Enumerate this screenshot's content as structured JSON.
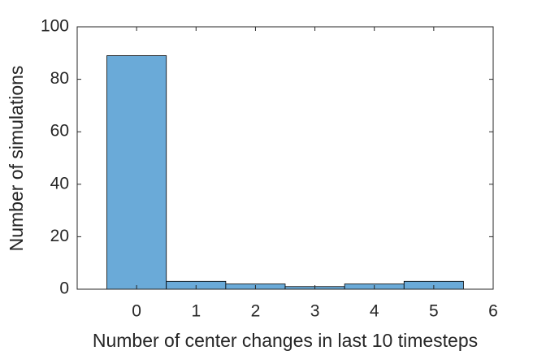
{
  "chart_data": {
    "type": "histogram",
    "xlabel": "Number of center changes in last 10 timesteps",
    "ylabel": "Number of simulations",
    "bins": [
      -0.5,
      0.5,
      1.5,
      2.5,
      3.5,
      4.5,
      5.5
    ],
    "counts": [
      89,
      3,
      2,
      1,
      2,
      3
    ],
    "color": "#6aaad8",
    "xlim": [
      -1,
      6
    ],
    "xticks": [
      0,
      1,
      2,
      3,
      4,
      5,
      6
    ],
    "ylim": [
      0,
      100
    ],
    "yticks": [
      0,
      20,
      40,
      60,
      80,
      100
    ],
    "grid": false
  }
}
